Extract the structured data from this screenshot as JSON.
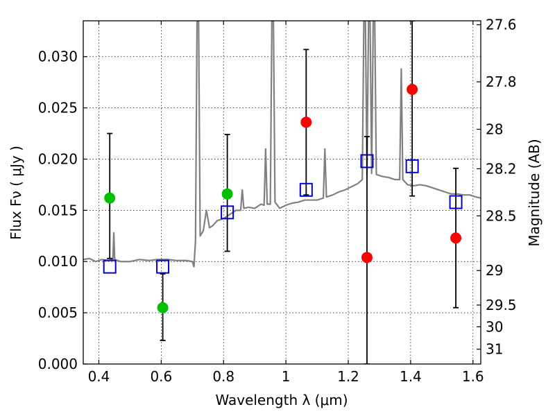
{
  "chart_data": {
    "type": "scatter",
    "xlabel": "Wavelength  λ (μm)",
    "ylabel": "Flux  Fν  ( μJy )",
    "y2label": "Magnitude (AB)",
    "xlim": [
      0.35,
      1.625
    ],
    "ylim": [
      0.0,
      0.0335
    ],
    "grid": true,
    "xticks": [
      {
        "value": 0.4,
        "label": "0.4"
      },
      {
        "value": 0.6,
        "label": "0.6"
      },
      {
        "value": 0.8,
        "label": "0.8"
      },
      {
        "value": 1.0,
        "label": "1"
      },
      {
        "value": 1.2,
        "label": "1.2"
      },
      {
        "value": 1.4,
        "label": "1.4"
      },
      {
        "value": 1.6,
        "label": "1.6"
      }
    ],
    "yticks": [
      {
        "value": 0.0,
        "label": "0.000"
      },
      {
        "value": 0.005,
        "label": "0.005"
      },
      {
        "value": 0.01,
        "label": "0.010"
      },
      {
        "value": 0.015,
        "label": "0.015"
      },
      {
        "value": 0.02,
        "label": "0.020"
      },
      {
        "value": 0.025,
        "label": "0.025"
      },
      {
        "value": 0.03,
        "label": "0.030"
      }
    ],
    "y2ticks": [
      {
        "value": 27.6,
        "label": "27.6"
      },
      {
        "value": 27.8,
        "label": "27.8"
      },
      {
        "value": 28.0,
        "label": "28"
      },
      {
        "value": 28.2,
        "label": "28.2"
      },
      {
        "value": 28.5,
        "label": "28.5"
      },
      {
        "value": 29.0,
        "label": "29"
      },
      {
        "value": 29.5,
        "label": "29.5"
      },
      {
        "value": 30.0,
        "label": "30"
      },
      {
        "value": 31.0,
        "label": "31"
      }
    ],
    "model_spectrum": {
      "color": "#808080",
      "points": [
        [
          0.35,
          0.0102
        ],
        [
          0.37,
          0.0103
        ],
        [
          0.39,
          0.01
        ],
        [
          0.41,
          0.0102
        ],
        [
          0.43,
          0.0101
        ],
        [
          0.445,
          0.0102
        ],
        [
          0.448,
          0.0128
        ],
        [
          0.451,
          0.0102
        ],
        [
          0.47,
          0.01
        ],
        [
          0.5,
          0.01
        ],
        [
          0.53,
          0.0102
        ],
        [
          0.56,
          0.0101
        ],
        [
          0.59,
          0.0102
        ],
        [
          0.62,
          0.0102
        ],
        [
          0.65,
          0.0101
        ],
        [
          0.68,
          0.0101
        ],
        [
          0.7,
          0.01
        ],
        [
          0.705,
          0.0095
        ],
        [
          0.71,
          0.012
        ],
        [
          0.715,
          0.0335
        ],
        [
          0.72,
          0.0335
        ],
        [
          0.725,
          0.0125
        ],
        [
          0.735,
          0.013
        ],
        [
          0.745,
          0.015
        ],
        [
          0.755,
          0.0133
        ],
        [
          0.765,
          0.0135
        ],
        [
          0.78,
          0.014
        ],
        [
          0.8,
          0.0142
        ],
        [
          0.82,
          0.0146
        ],
        [
          0.84,
          0.015
        ],
        [
          0.855,
          0.015
        ],
        [
          0.86,
          0.017
        ],
        [
          0.865,
          0.0152
        ],
        [
          0.88,
          0.0153
        ],
        [
          0.9,
          0.0152
        ],
        [
          0.92,
          0.0156
        ],
        [
          0.93,
          0.0155
        ],
        [
          0.935,
          0.021
        ],
        [
          0.94,
          0.0156
        ],
        [
          0.95,
          0.0156
        ],
        [
          0.955,
          0.0335
        ],
        [
          0.96,
          0.0335
        ],
        [
          0.965,
          0.0158
        ],
        [
          0.98,
          0.0152
        ],
        [
          1.0,
          0.0155
        ],
        [
          1.02,
          0.0157
        ],
        [
          1.04,
          0.0158
        ],
        [
          1.06,
          0.016
        ],
        [
          1.08,
          0.016
        ],
        [
          1.1,
          0.016
        ],
        [
          1.12,
          0.0162
        ],
        [
          1.125,
          0.021
        ],
        [
          1.13,
          0.0163
        ],
        [
          1.15,
          0.0165
        ],
        [
          1.17,
          0.0168
        ],
        [
          1.19,
          0.017
        ],
        [
          1.21,
          0.0173
        ],
        [
          1.23,
          0.0176
        ],
        [
          1.245,
          0.018
        ],
        [
          1.25,
          0.0335
        ],
        [
          1.255,
          0.0335
        ],
        [
          1.26,
          0.0185
        ],
        [
          1.265,
          0.0335
        ],
        [
          1.27,
          0.0335
        ],
        [
          1.275,
          0.0186
        ],
        [
          1.28,
          0.0335
        ],
        [
          1.285,
          0.0335
        ],
        [
          1.29,
          0.0185
        ],
        [
          1.31,
          0.0183
        ],
        [
          1.33,
          0.0182
        ],
        [
          1.35,
          0.018
        ],
        [
          1.365,
          0.018
        ],
        [
          1.37,
          0.0288
        ],
        [
          1.375,
          0.018
        ],
        [
          1.39,
          0.0175
        ],
        [
          1.41,
          0.0174
        ],
        [
          1.43,
          0.0175
        ],
        [
          1.45,
          0.0174
        ],
        [
          1.47,
          0.0172
        ],
        [
          1.49,
          0.017
        ],
        [
          1.51,
          0.0168
        ],
        [
          1.53,
          0.0166
        ],
        [
          1.55,
          0.0166
        ],
        [
          1.57,
          0.0165
        ],
        [
          1.59,
          0.0165
        ],
        [
          1.61,
          0.0163
        ],
        [
          1.625,
          0.0162
        ]
      ]
    },
    "series": [
      {
        "marker": "circle",
        "color": "#00c000",
        "points": [
          {
            "x": 0.435,
            "y": 0.0162,
            "yerr_low": 0.0103,
            "yerr_high": 0.0225
          },
          {
            "x": 0.605,
            "y": 0.0055,
            "yerr_low": 0.0023,
            "yerr_high": 0.0088
          },
          {
            "x": 0.812,
            "y": 0.0166,
            "yerr_low": 0.011,
            "yerr_high": 0.0224
          }
        ]
      },
      {
        "marker": "circle",
        "color": "#ff0000",
        "points": [
          {
            "x": 1.065,
            "y": 0.0236,
            "yerr_low": 0.0165,
            "yerr_high": 0.0307
          },
          {
            "x": 1.26,
            "y": 0.0104,
            "yerr_low": 0.0,
            "yerr_high": 0.0222
          },
          {
            "x": 1.405,
            "y": 0.0268,
            "yerr_low": 0.0164,
            "yerr_high": 0.0335
          },
          {
            "x": 1.545,
            "y": 0.0123,
            "yerr_low": 0.0055,
            "yerr_high": 0.0191
          }
        ]
      },
      {
        "marker": "open-square",
        "color": "#0000cc",
        "points": [
          {
            "x": 0.435,
            "y": 0.0095
          },
          {
            "x": 0.605,
            "y": 0.0095
          },
          {
            "x": 0.812,
            "y": 0.0148
          },
          {
            "x": 1.065,
            "y": 0.017
          },
          {
            "x": 1.26,
            "y": 0.0198
          },
          {
            "x": 1.405,
            "y": 0.0193
          },
          {
            "x": 1.545,
            "y": 0.0158
          }
        ]
      }
    ]
  }
}
